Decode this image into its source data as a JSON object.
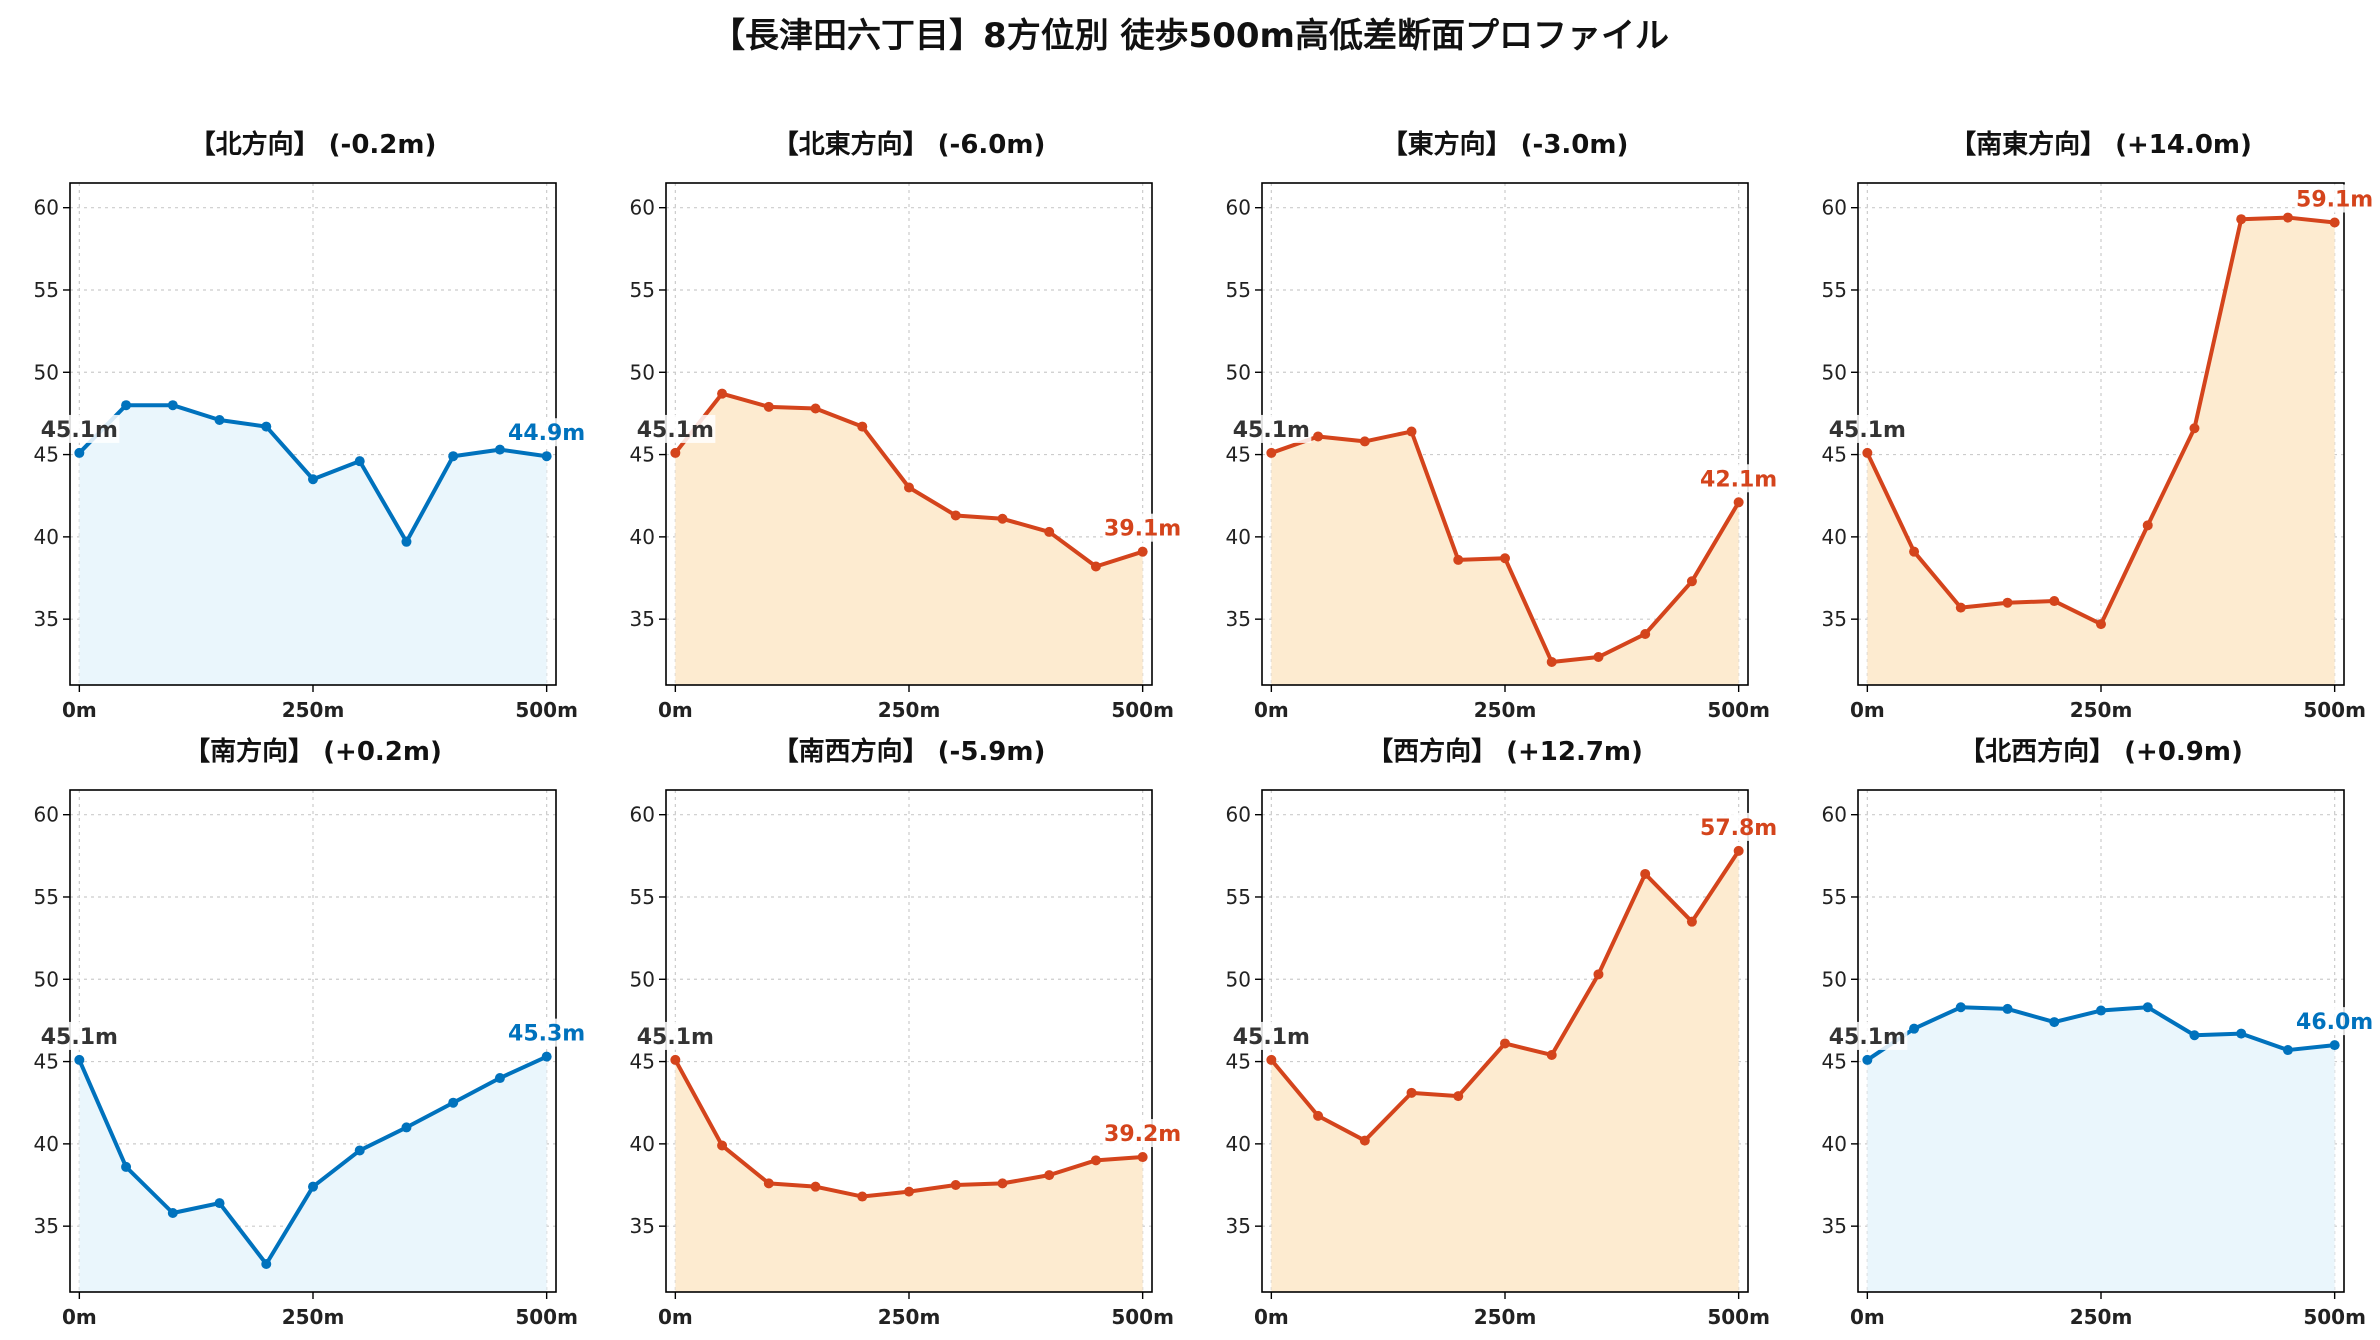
{
  "title": "【長津田六丁目】8方位別 徒歩500m高低差断面プロファイル",
  "colors": {
    "blue_line": "#0072bd",
    "blue_fill": "#eaf6fc",
    "orange_line": "#d4441c",
    "orange_fill": "#fdebd0",
    "start_label": "#333333"
  },
  "chart_data": [
    {
      "type": "area",
      "title": "【北方向】 (-0.2m)",
      "color": "blue",
      "x": [
        0,
        50,
        100,
        150,
        200,
        250,
        300,
        350,
        400,
        450,
        500
      ],
      "y": [
        45.1,
        48.0,
        48.0,
        47.1,
        46.7,
        43.5,
        44.6,
        39.7,
        44.9,
        45.3,
        44.9
      ],
      "start_label": "45.1m",
      "end_label": "44.9m",
      "xticks": [
        "0m",
        "250m",
        "500m"
      ],
      "yticks": [
        35,
        40,
        45,
        50,
        55,
        60
      ],
      "xlim": [
        -10,
        510
      ],
      "ylim": [
        31,
        61.5
      ],
      "grid": true
    },
    {
      "type": "area",
      "title": "【北東方向】 (-6.0m)",
      "color": "orange",
      "x": [
        0,
        50,
        100,
        150,
        200,
        250,
        300,
        350,
        400,
        450,
        500
      ],
      "y": [
        45.1,
        48.7,
        47.9,
        47.8,
        46.7,
        43.0,
        41.3,
        41.1,
        40.3,
        38.2,
        39.1
      ],
      "start_label": "45.1m",
      "end_label": "39.1m",
      "xticks": [
        "0m",
        "250m",
        "500m"
      ],
      "yticks": [
        35,
        40,
        45,
        50,
        55,
        60
      ],
      "xlim": [
        -10,
        510
      ],
      "ylim": [
        31,
        61.5
      ],
      "grid": true
    },
    {
      "type": "area",
      "title": "【東方向】 (-3.0m)",
      "color": "orange",
      "x": [
        0,
        50,
        100,
        150,
        200,
        250,
        300,
        350,
        400,
        450,
        500
      ],
      "y": [
        45.1,
        46.1,
        45.8,
        46.4,
        38.6,
        38.7,
        32.4,
        32.7,
        34.1,
        37.3,
        42.1
      ],
      "start_label": "45.1m",
      "end_label": "42.1m",
      "xticks": [
        "0m",
        "250m",
        "500m"
      ],
      "yticks": [
        35,
        40,
        45,
        50,
        55,
        60
      ],
      "xlim": [
        -10,
        510
      ],
      "ylim": [
        31,
        61.5
      ],
      "grid": true
    },
    {
      "type": "area",
      "title": "【南東方向】 (+14.0m)",
      "color": "orange",
      "x": [
        0,
        50,
        100,
        150,
        200,
        250,
        300,
        350,
        400,
        450,
        500
      ],
      "y": [
        45.1,
        39.1,
        35.7,
        36.0,
        36.1,
        34.7,
        40.7,
        46.6,
        59.3,
        59.4,
        59.1
      ],
      "start_label": "45.1m",
      "end_label": "59.1m",
      "xticks": [
        "0m",
        "250m",
        "500m"
      ],
      "yticks": [
        35,
        40,
        45,
        50,
        55,
        60
      ],
      "xlim": [
        -10,
        510
      ],
      "ylim": [
        31,
        61.5
      ],
      "grid": true
    },
    {
      "type": "area",
      "title": "【南方向】 (+0.2m)",
      "color": "blue",
      "x": [
        0,
        50,
        100,
        150,
        200,
        250,
        300,
        350,
        400,
        450,
        500
      ],
      "y": [
        45.1,
        38.6,
        35.8,
        36.4,
        32.7,
        37.4,
        39.6,
        41.0,
        42.5,
        44.0,
        45.3
      ],
      "start_label": "45.1m",
      "end_label": "45.3m",
      "xticks": [
        "0m",
        "250m",
        "500m"
      ],
      "yticks": [
        35,
        40,
        45,
        50,
        55,
        60
      ],
      "xlim": [
        -10,
        510
      ],
      "ylim": [
        31,
        61.5
      ],
      "grid": true
    },
    {
      "type": "area",
      "title": "【南西方向】 (-5.9m)",
      "color": "orange",
      "x": [
        0,
        50,
        100,
        150,
        200,
        250,
        300,
        350,
        400,
        450,
        500
      ],
      "y": [
        45.1,
        39.9,
        37.6,
        37.4,
        36.8,
        37.1,
        37.5,
        37.6,
        38.1,
        39.0,
        39.2
      ],
      "start_label": "45.1m",
      "end_label": "39.2m",
      "xticks": [
        "0m",
        "250m",
        "500m"
      ],
      "yticks": [
        35,
        40,
        45,
        50,
        55,
        60
      ],
      "xlim": [
        -10,
        510
      ],
      "ylim": [
        31,
        61.5
      ],
      "grid": true
    },
    {
      "type": "area",
      "title": "【西方向】 (+12.7m)",
      "color": "orange",
      "x": [
        0,
        50,
        100,
        150,
        200,
        250,
        300,
        350,
        400,
        450,
        500
      ],
      "y": [
        45.1,
        41.7,
        40.2,
        43.1,
        42.9,
        46.1,
        45.4,
        50.3,
        56.4,
        53.5,
        57.8
      ],
      "start_label": "45.1m",
      "end_label": "57.8m",
      "xticks": [
        "0m",
        "250m",
        "500m"
      ],
      "yticks": [
        35,
        40,
        45,
        50,
        55,
        60
      ],
      "xlim": [
        -10,
        510
      ],
      "ylim": [
        31,
        61.5
      ],
      "grid": true
    },
    {
      "type": "area",
      "title": "【北西方向】 (+0.9m)",
      "color": "blue",
      "x": [
        0,
        50,
        100,
        150,
        200,
        250,
        300,
        350,
        400,
        450,
        500
      ],
      "y": [
        45.1,
        47.0,
        48.3,
        48.2,
        47.4,
        48.1,
        48.3,
        46.6,
        46.7,
        45.7,
        46.0
      ],
      "start_label": "45.1m",
      "end_label": "46.0m",
      "xticks": [
        "0m",
        "250m",
        "500m"
      ],
      "yticks": [
        35,
        40,
        45,
        50,
        55,
        60
      ],
      "xlim": [
        -10,
        510
      ],
      "ylim": [
        31,
        61.5
      ],
      "grid": true
    }
  ]
}
